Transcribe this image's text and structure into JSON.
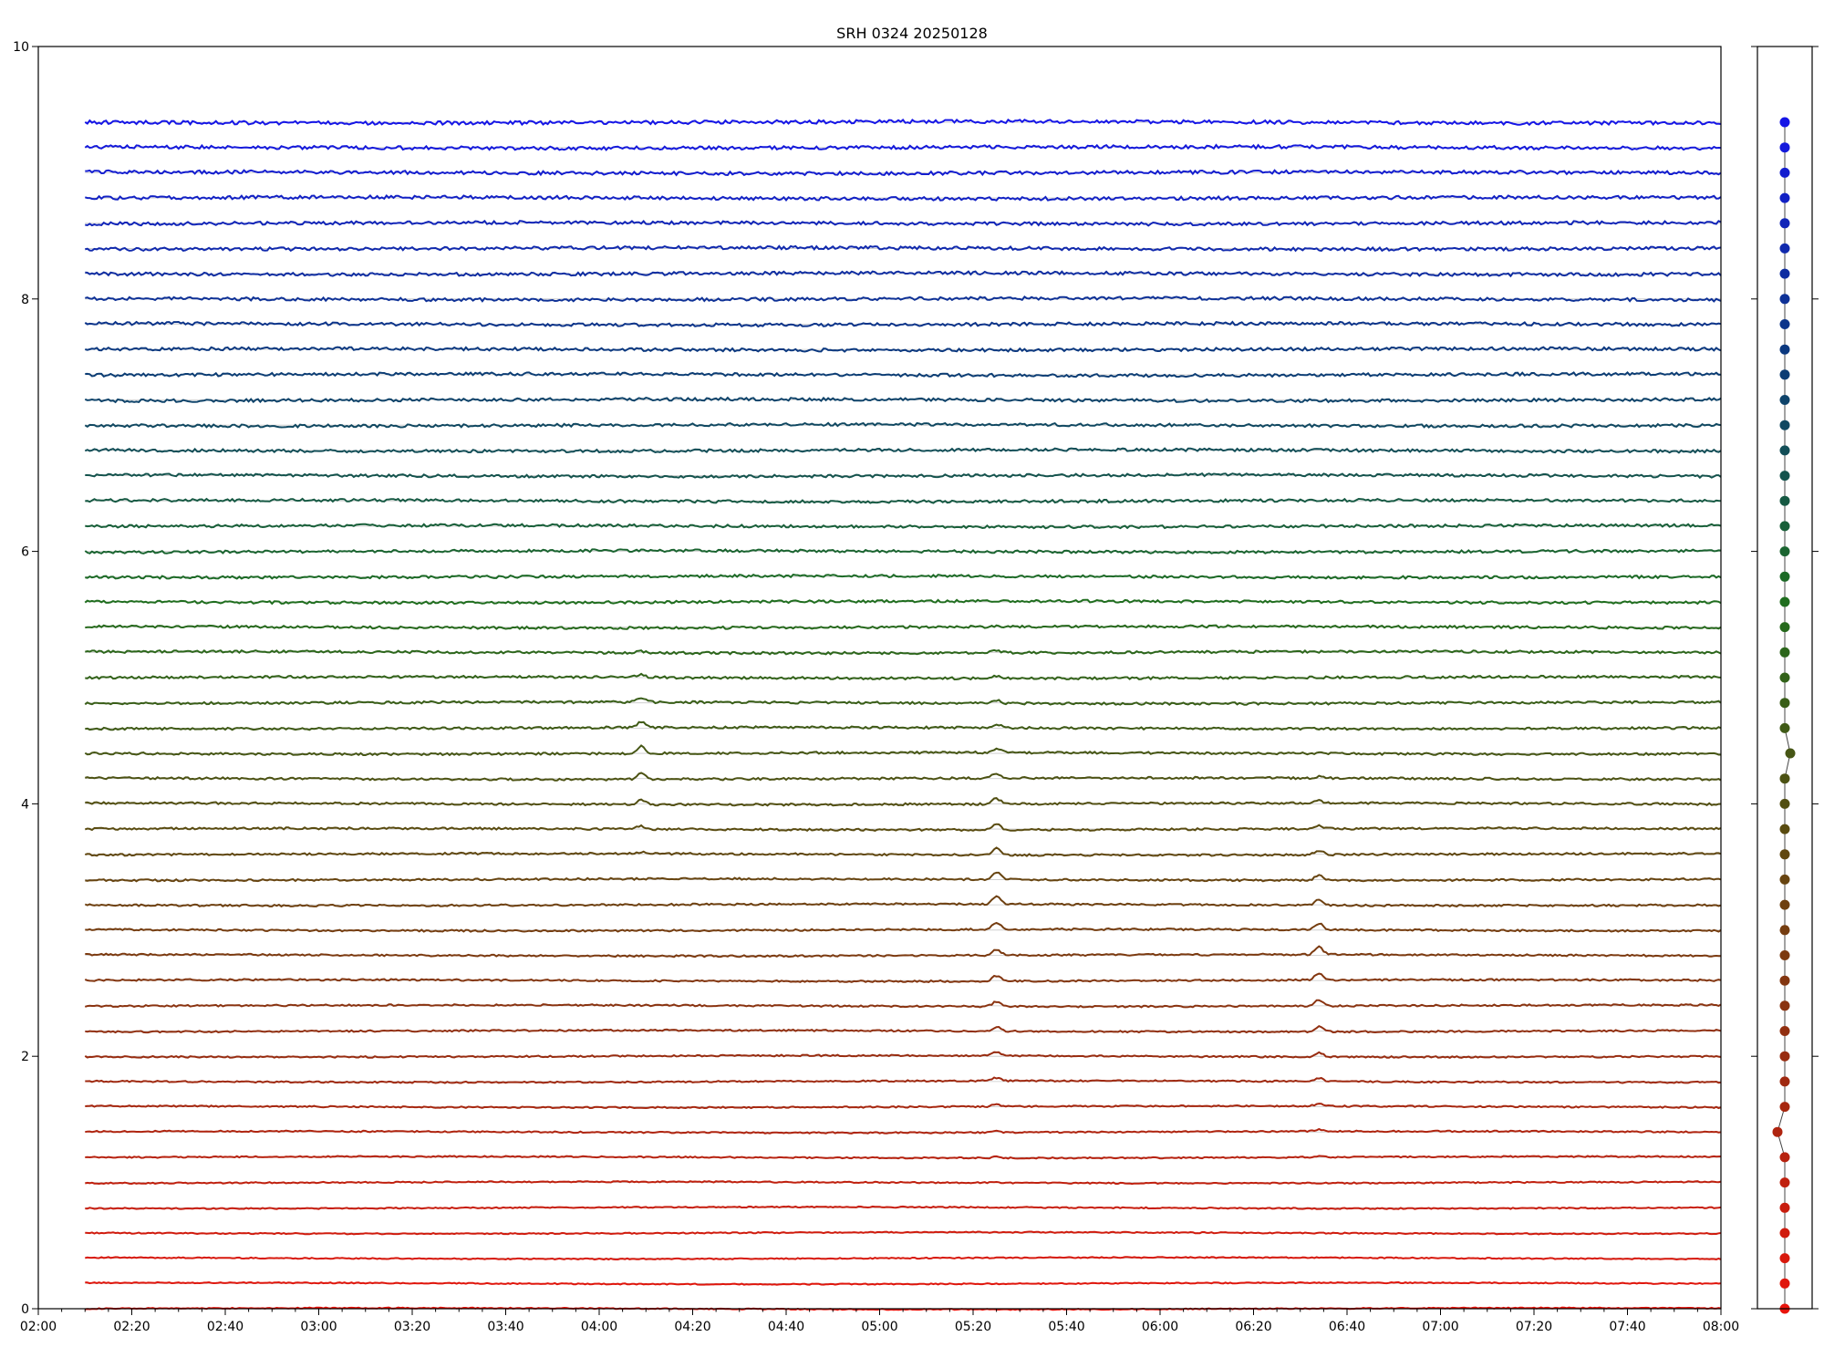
{
  "chart_data": [
    {
      "type": "line",
      "title": "SRH 0324 20250128",
      "xlabel": "",
      "ylabel": "",
      "xlim": [
        "02:00",
        "08:00"
      ],
      "ylim": [
        0,
        10
      ],
      "grid": false,
      "x_tick_labels": [
        "02:00",
        "02:20",
        "02:40",
        "03:00",
        "03:20",
        "03:40",
        "04:00",
        "04:20",
        "04:40",
        "05:00",
        "05:20",
        "05:40",
        "06:00",
        "06:20",
        "06:40",
        "07:00",
        "07:20",
        "07:40",
        "08:00"
      ],
      "y_tick_labels": [
        "0",
        "2",
        "4",
        "6",
        "8",
        "10"
      ],
      "series_count": 48,
      "series_baselines": [
        0.0,
        0.2,
        0.4,
        0.6,
        0.8,
        1.0,
        1.2,
        1.4,
        1.6,
        1.8,
        2.0,
        2.2,
        2.4,
        2.6,
        2.8,
        3.0,
        3.2,
        3.4,
        3.6,
        3.8,
        4.0,
        4.2,
        4.4,
        4.6,
        4.8,
        5.0,
        5.2,
        5.4,
        5.6,
        5.8,
        6.0,
        6.2,
        6.4,
        6.6,
        6.8,
        7.0,
        7.2,
        7.4,
        7.6,
        7.8,
        8.0,
        8.2,
        8.4,
        8.6,
        8.8,
        9.0,
        9.2,
        9.4
      ],
      "series_time_range": [
        "02:10",
        "08:00"
      ],
      "color_gradient": [
        "#e8140c",
        "#9c2a10",
        "#5a4a10",
        "#1e6e1e",
        "#0b3a7a",
        "#1515e6"
      ],
      "events": [
        {
          "time": "04:09",
          "peak_series_range": [
            18,
            26
          ]
        },
        {
          "time": "05:25",
          "peak_series_range": [
            5,
            28
          ]
        },
        {
          "time": "06:34",
          "peak_series_range": [
            6,
            22
          ]
        }
      ]
    },
    {
      "type": "scatter",
      "title": "",
      "ylim": [
        0,
        10
      ],
      "points_y": [
        0.0,
        0.2,
        0.4,
        0.6,
        0.8,
        1.0,
        1.2,
        1.4,
        1.6,
        1.8,
        2.0,
        2.2,
        2.4,
        2.6,
        2.8,
        3.0,
        3.2,
        3.4,
        3.6,
        3.8,
        4.0,
        4.2,
        4.4,
        4.6,
        4.8,
        5.0,
        5.2,
        5.4,
        5.6,
        5.8,
        6.0,
        6.2,
        6.4,
        6.6,
        6.8,
        7.0,
        7.2,
        7.4,
        7.6,
        7.8,
        8.0,
        8.2,
        8.4,
        8.6,
        8.8,
        9.0,
        9.2,
        9.4
      ],
      "points_x_offset": [
        0,
        0,
        0,
        0,
        0,
        0,
        0,
        -0.4,
        0,
        0,
        0,
        0,
        0,
        0,
        0,
        0,
        0,
        0,
        0,
        0,
        0,
        0,
        0.3,
        0,
        0,
        0,
        0,
        0,
        0,
        0,
        0,
        0,
        0,
        0,
        0,
        0,
        0,
        0,
        0,
        0,
        0,
        0,
        0,
        0,
        0,
        0,
        0,
        0
      ]
    }
  ]
}
